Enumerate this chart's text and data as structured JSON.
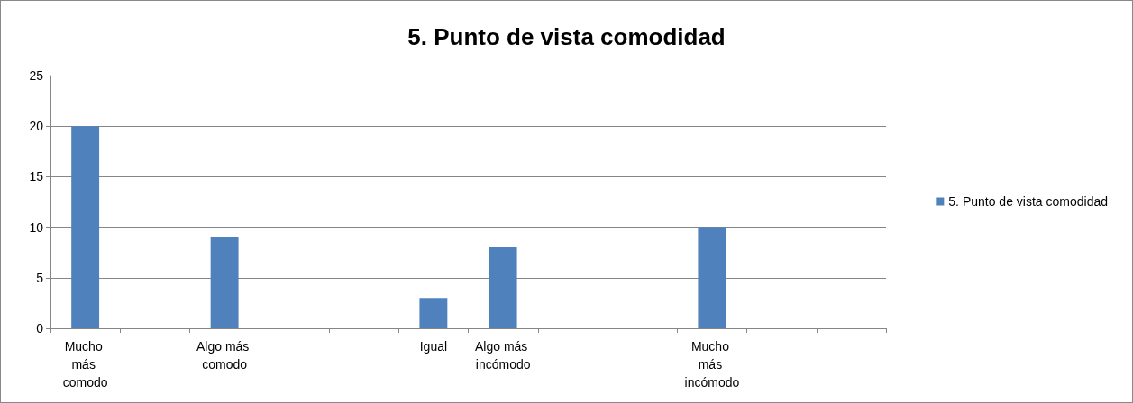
{
  "chart_data": {
    "type": "bar",
    "title": "5. Punto de vista comodidad",
    "categories": [
      "Mucho más comodo",
      null,
      "Algo más comodo",
      null,
      null,
      "Igual",
      "Algo más incómodo",
      null,
      null,
      "Mucho más incómodo",
      null,
      null
    ],
    "series": [
      {
        "name": "5. Punto de vista comodidad",
        "color": "#4f81bd",
        "values": [
          20,
          null,
          9,
          null,
          null,
          3,
          8,
          null,
          null,
          10,
          null,
          null
        ]
      }
    ],
    "ylim": [
      0,
      25
    ],
    "yticks": [
      0,
      5,
      10,
      15,
      20,
      25
    ],
    "grid": "y",
    "legend": "right"
  }
}
